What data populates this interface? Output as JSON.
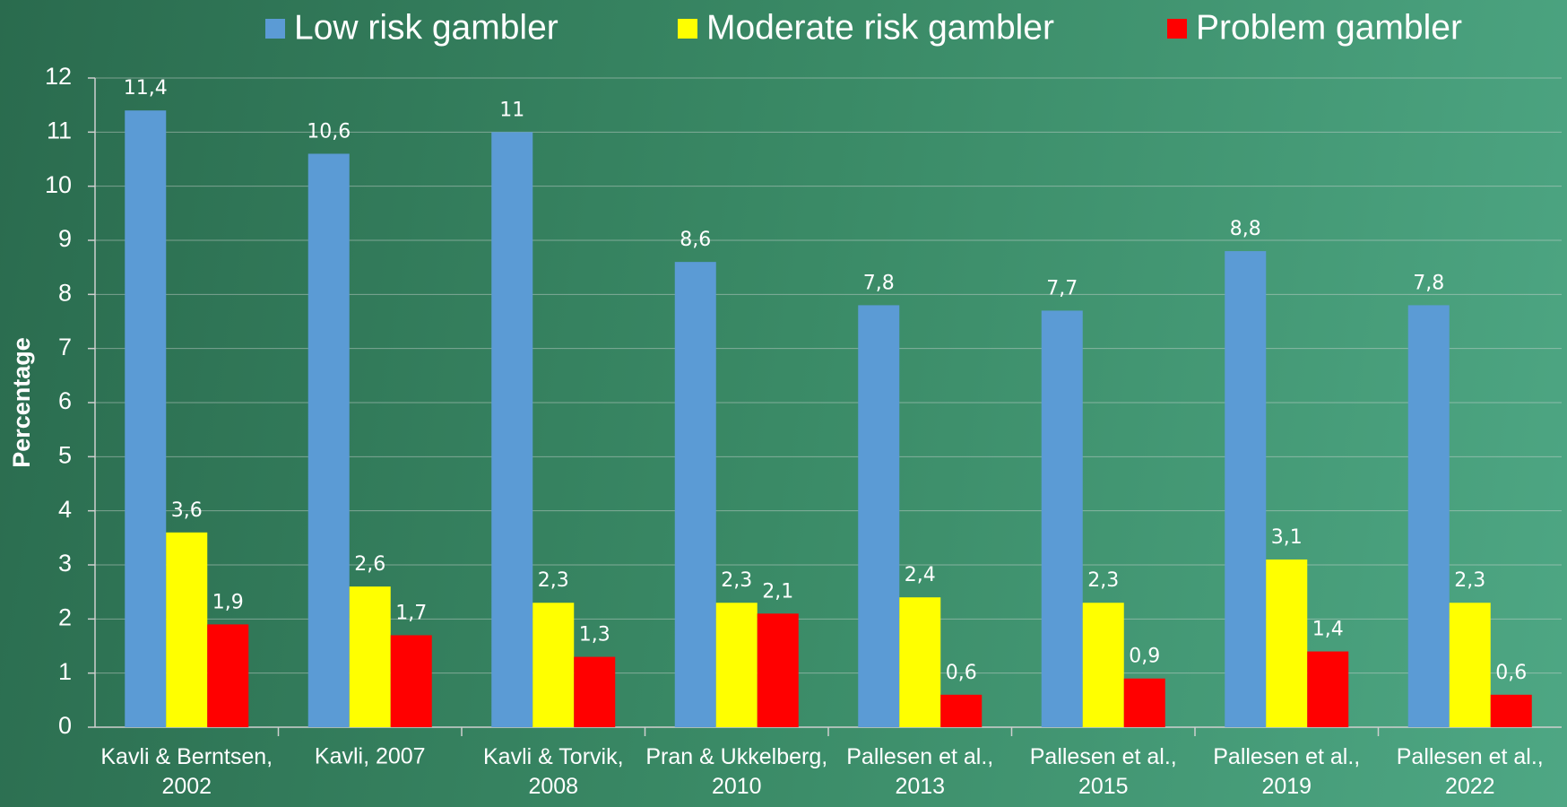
{
  "chart_data": {
    "type": "bar",
    "y_label": "Percentage",
    "categories": [
      "Kavli & Berntsen,\n2002",
      "Kavli, 2007",
      "Kavli & Torvik,\n2008",
      "Pran & Ukkelberg,\n2010",
      "Pallesen et al.,\n2013",
      "Pallesen et al.,\n2015",
      "Pallesen et al.,\n2019",
      "Pallesen et al.,\n2022"
    ],
    "series": [
      {
        "name": "Low risk gambler",
        "color": "#5b9bd5",
        "values": [
          11.4,
          10.6,
          11,
          8.6,
          7.8,
          7.7,
          8.8,
          7.8
        ],
        "value_labels": [
          "11,4",
          "10,6",
          "11",
          "8,6",
          "7,8",
          "7,7",
          "8,8",
          "7,8"
        ]
      },
      {
        "name": "Moderate risk gambler",
        "color": "#ffff00",
        "values": [
          3.6,
          2.6,
          2.3,
          2.3,
          2.4,
          2.3,
          3.1,
          2.3
        ],
        "value_labels": [
          "3,6",
          "2,6",
          "2,3",
          "2,3",
          "2,4",
          "2,3",
          "3,1",
          "2,3"
        ]
      },
      {
        "name": "Problem gambler",
        "color": "#ff0000",
        "values": [
          1.9,
          1.7,
          1.3,
          2.1,
          0.6,
          0.9,
          1.4,
          0.6
        ],
        "value_labels": [
          "1,9",
          "1,7",
          "1,3",
          "2,1",
          "0,6",
          "0,9",
          "1,4",
          "0,6"
        ]
      }
    ],
    "ylim": [
      0,
      12
    ],
    "yticks": [
      0,
      1,
      2,
      3,
      4,
      5,
      6,
      7,
      8,
      9,
      10,
      11,
      12
    ],
    "grid": true,
    "legend": "top"
  }
}
